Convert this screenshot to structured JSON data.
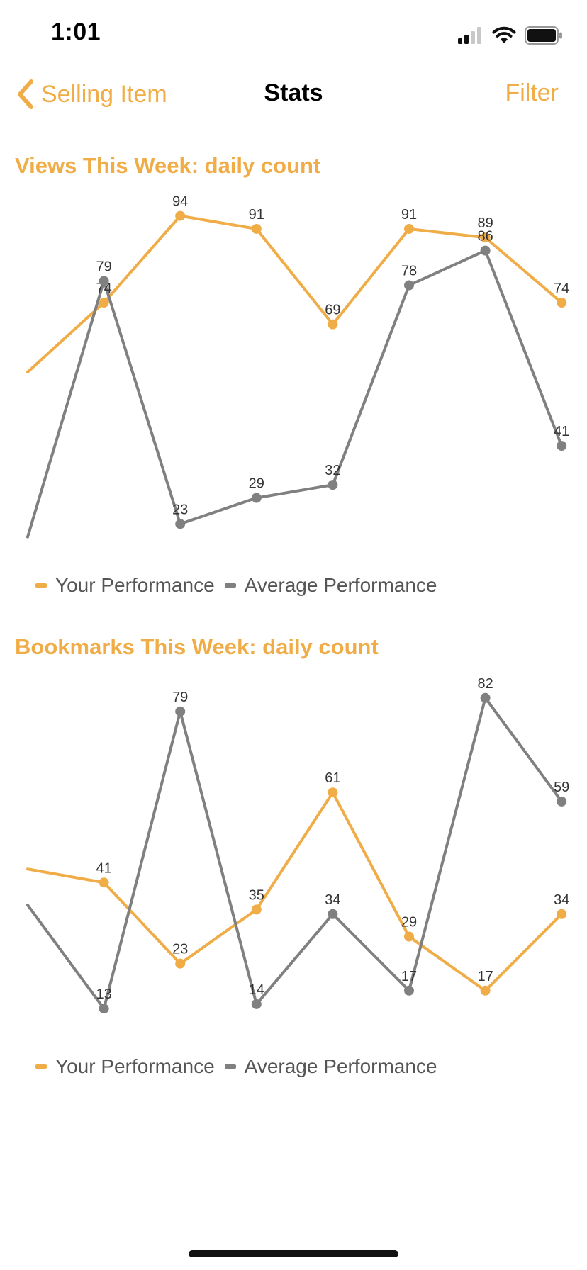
{
  "status_bar": {
    "time": "1:01",
    "icons": [
      "signal-icon",
      "wifi-icon",
      "battery-icon"
    ]
  },
  "nav": {
    "back_label": "Selling Item",
    "title": "Stats",
    "filter_label": "Filter"
  },
  "colors": {
    "accent": "#f0ad47",
    "series_yours": "#f0ad47",
    "series_average": "#808080"
  },
  "chart_data": [
    {
      "type": "line",
      "title": "Views This Week: daily count",
      "x": [
        0,
        1,
        2,
        3,
        4,
        5,
        6,
        7
      ],
      "y_range": [
        17,
        99
      ],
      "series": [
        {
          "name": "Your Performance",
          "color": "#f0ad47",
          "values": [
            58,
            74,
            94,
            91,
            69,
            91,
            89,
            74
          ],
          "labels": [
            "",
            "74",
            "94",
            "91",
            "69",
            "91",
            "89",
            "74"
          ]
        },
        {
          "name": "Average Performance",
          "color": "#808080",
          "values": [
            20,
            79,
            23,
            29,
            32,
            78,
            86,
            41
          ],
          "labels": [
            "",
            "79",
            "23",
            "29",
            "32",
            "78",
            "86",
            "41"
          ]
        }
      ],
      "legend_position": "bottom-left"
    },
    {
      "type": "line",
      "title": "Bookmarks This Week: daily count",
      "x": [
        0,
        1,
        2,
        3,
        4,
        5,
        6,
        7
      ],
      "y_range": [
        8,
        87
      ],
      "series": [
        {
          "name": "Your Performance",
          "color": "#f0ad47",
          "values": [
            44,
            41,
            23,
            35,
            61,
            29,
            17,
            34
          ],
          "labels": [
            "",
            "41",
            "23",
            "35",
            "61",
            "29",
            "17",
            "34"
          ]
        },
        {
          "name": "Average Performance",
          "color": "#808080",
          "values": [
            36,
            13,
            79,
            14,
            34,
            17,
            82,
            59
          ],
          "labels": [
            "",
            "13",
            "79",
            "14",
            "34",
            "17",
            "82",
            "59"
          ]
        }
      ],
      "legend_position": "bottom-left"
    }
  ]
}
